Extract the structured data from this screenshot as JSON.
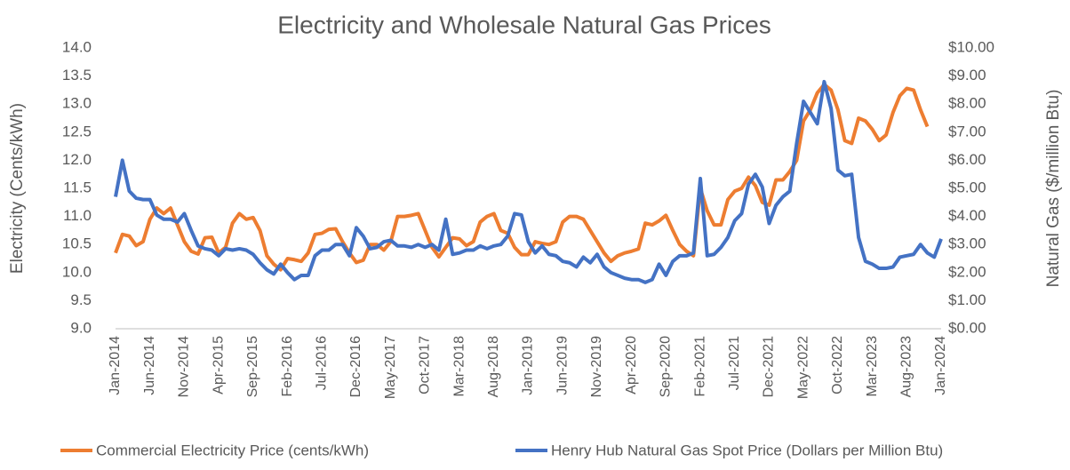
{
  "chart_data": {
    "type": "line",
    "title": "Electricity and Wholesale Natural Gas Prices",
    "y_label": "Electricity (Cents/kWh)",
    "y2_label": "Natural Gas ($/million Btu)",
    "categories": [
      "Jan-2014",
      null,
      null,
      null,
      null,
      "Jun-2014",
      null,
      null,
      null,
      null,
      "Nov-2014",
      null,
      null,
      null,
      null,
      "Apr-2015",
      null,
      null,
      null,
      null,
      "Sep-2015",
      null,
      null,
      null,
      null,
      "Feb-2016",
      null,
      null,
      null,
      null,
      "Jul-2016",
      null,
      null,
      null,
      null,
      "Dec-2016",
      null,
      null,
      null,
      null,
      "May-2017",
      null,
      null,
      null,
      null,
      "Oct-2017",
      null,
      null,
      null,
      null,
      "Mar-2018",
      null,
      null,
      null,
      null,
      "Aug-2018",
      null,
      null,
      null,
      null,
      "Jan-2019",
      null,
      null,
      null,
      null,
      "Jun-2019",
      null,
      null,
      null,
      null,
      "Nov-2019",
      null,
      null,
      null,
      null,
      "Apr-2020",
      null,
      null,
      null,
      null,
      "Sep-2020",
      null,
      null,
      null,
      null,
      "Feb-2021",
      null,
      null,
      null,
      null,
      "Jul-2021",
      null,
      null,
      null,
      null,
      "Dec-2021",
      null,
      null,
      null,
      null,
      "May-2022",
      null,
      null,
      null,
      null,
      "Oct-2022",
      null,
      null,
      null,
      null,
      "Mar-2023",
      null,
      null,
      null,
      null,
      "Aug-2023",
      null,
      null,
      null,
      null,
      "Jan-2024"
    ],
    "series": [
      {
        "name": "Commercial Electricity Price (cents/kWh)",
        "color": "#ed7d31",
        "axis": "y",
        "values": [
          10.35,
          10.68,
          10.65,
          10.48,
          10.55,
          10.95,
          11.15,
          11.05,
          11.15,
          10.85,
          10.55,
          10.38,
          10.33,
          10.62,
          10.63,
          10.35,
          10.45,
          10.88,
          11.05,
          10.95,
          10.98,
          10.75,
          10.3,
          10.15,
          10.05,
          10.25,
          10.23,
          10.2,
          10.35,
          10.68,
          10.7,
          10.77,
          10.78,
          10.55,
          10.35,
          10.18,
          10.22,
          10.5,
          10.5,
          10.4,
          10.55,
          11.0,
          11.0,
          11.02,
          11.05,
          10.75,
          10.45,
          10.28,
          10.45,
          10.62,
          10.6,
          10.48,
          10.55,
          10.9,
          11.0,
          11.05,
          10.75,
          10.7,
          10.45,
          10.32,
          10.32,
          10.55,
          10.52,
          10.5,
          10.55,
          10.9,
          11.0,
          11.0,
          10.95,
          10.75,
          10.55,
          10.35,
          10.2,
          10.3,
          10.35,
          10.38,
          10.42,
          10.88,
          10.85,
          10.92,
          11.02,
          10.75,
          10.5,
          10.38,
          10.3,
          11.5,
          11.1,
          10.85,
          10.85,
          11.3,
          11.45,
          11.5,
          11.7,
          11.55,
          11.25,
          11.2,
          11.65,
          11.65,
          11.8,
          12.0,
          12.7,
          12.9,
          13.2,
          13.35,
          13.25,
          12.9,
          12.35,
          12.3,
          12.75,
          12.7,
          12.55,
          12.35,
          12.45,
          12.85,
          13.15,
          13.28,
          13.25,
          12.9,
          12.6,
          null,
          null
        ]
      },
      {
        "name": "Henry Hub Natural Gas Spot Price (Dollars per Million Btu)",
        "color": "#4472c4",
        "axis": "y2",
        "values": [
          4.7,
          6.0,
          4.9,
          4.65,
          4.6,
          4.6,
          4.05,
          3.9,
          3.9,
          3.8,
          4.1,
          3.5,
          2.95,
          2.85,
          2.8,
          2.6,
          2.85,
          2.8,
          2.85,
          2.8,
          2.65,
          2.35,
          2.1,
          1.95,
          2.3,
          2.0,
          1.75,
          1.9,
          1.9,
          2.6,
          2.8,
          2.8,
          3.0,
          3.0,
          2.6,
          3.6,
          3.3,
          2.85,
          2.9,
          3.1,
          3.15,
          2.95,
          2.95,
          2.9,
          3.0,
          2.9,
          3.0,
          2.8,
          3.9,
          2.65,
          2.7,
          2.8,
          2.8,
          2.95,
          2.85,
          2.95,
          3.0,
          3.3,
          4.1,
          4.05,
          3.1,
          2.7,
          2.95,
          2.65,
          2.6,
          2.4,
          2.35,
          2.2,
          2.55,
          2.35,
          2.65,
          2.2,
          2.0,
          1.9,
          1.8,
          1.75,
          1.75,
          1.65,
          1.75,
          2.3,
          1.9,
          2.4,
          2.6,
          2.6,
          2.7,
          5.35,
          2.6,
          2.65,
          2.9,
          3.25,
          3.85,
          4.1,
          5.15,
          5.5,
          5.05,
          3.75,
          4.4,
          4.7,
          4.9,
          6.6,
          8.1,
          7.7,
          7.3,
          8.8,
          7.85,
          5.65,
          5.45,
          5.5,
          3.25,
          2.4,
          2.3,
          2.15,
          2.15,
          2.2,
          2.55,
          2.6,
          2.65,
          3.0,
          2.7,
          2.55,
          3.2
        ]
      }
    ],
    "ylim": [
      9,
      14
    ],
    "yticks": [
      {
        "value": 9,
        "label": "9.0"
      },
      {
        "value": 9.5,
        "label": "9.5"
      },
      {
        "value": 10,
        "label": "10.0"
      },
      {
        "value": 10.5,
        "label": "10.5"
      },
      {
        "value": 11,
        "label": "11.0"
      },
      {
        "value": 11.5,
        "label": "11.5"
      },
      {
        "value": 12,
        "label": "12.0"
      },
      {
        "value": 12.5,
        "label": "12.5"
      },
      {
        "value": 13,
        "label": "13.0"
      },
      {
        "value": 13.5,
        "label": "13.5"
      },
      {
        "value": 14,
        "label": "14.0"
      }
    ],
    "y2lim": [
      0,
      10
    ],
    "y2ticks": [
      {
        "value": 0,
        "label": "$0.00"
      },
      {
        "value": 1,
        "label": "$1.00"
      },
      {
        "value": 2,
        "label": "$2.00"
      },
      {
        "value": 3,
        "label": "$3.00"
      },
      {
        "value": 4,
        "label": "$4.00"
      },
      {
        "value": 5,
        "label": "$5.00"
      },
      {
        "value": 6,
        "label": "$6.00"
      },
      {
        "value": 7,
        "label": "$7.00"
      },
      {
        "value": 8,
        "label": "$8.00"
      },
      {
        "value": 9,
        "label": "$9.00"
      },
      {
        "value": 10,
        "label": "$10.00"
      }
    ],
    "grid": false,
    "legend": "bottom"
  }
}
